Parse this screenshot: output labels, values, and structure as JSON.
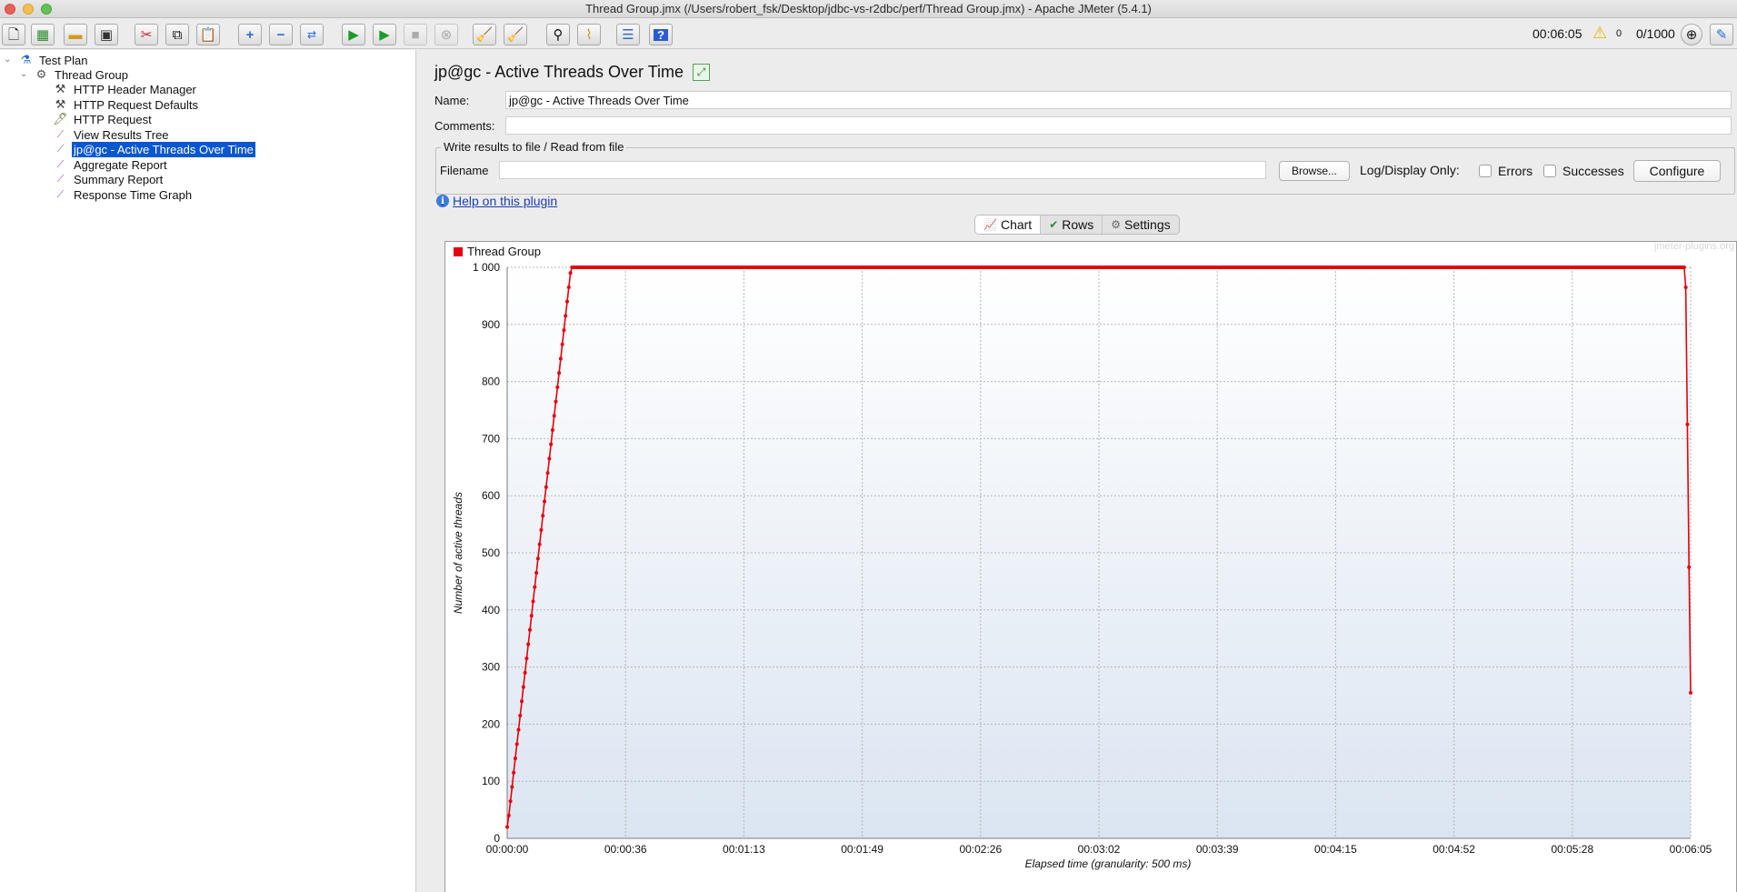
{
  "window": {
    "title": "Thread Group.jmx (/Users/robert_fsk/Desktop/jdbc-vs-r2dbc/perf/Thread Group.jmx) - Apache JMeter (5.4.1)"
  },
  "toolbar": {
    "buttons": [
      {
        "name": "new",
        "icon": "new-file-icon"
      },
      {
        "name": "templates",
        "icon": "templates-icon"
      },
      {
        "name": "open",
        "icon": "open-folder-icon"
      },
      {
        "name": "save",
        "icon": "save-icon"
      },
      {
        "name": "cut",
        "icon": "cut-icon"
      },
      {
        "name": "copy",
        "icon": "copy-icon"
      },
      {
        "name": "paste",
        "icon": "paste-icon"
      },
      {
        "name": "expand-all",
        "icon": "plus-icon"
      },
      {
        "name": "collapse-all",
        "icon": "minus-icon"
      },
      {
        "name": "toggle",
        "icon": "toggle-icon"
      },
      {
        "name": "start",
        "icon": "play-icon"
      },
      {
        "name": "start-no-pauses",
        "icon": "play-no-timers-icon"
      },
      {
        "name": "stop",
        "icon": "stop-icon"
      },
      {
        "name": "shutdown",
        "icon": "shutdown-icon"
      },
      {
        "name": "clear",
        "icon": "clear-icon"
      },
      {
        "name": "clear-all",
        "icon": "clear-all-icon"
      },
      {
        "name": "search",
        "icon": "binoculars-icon"
      },
      {
        "name": "reset-search",
        "icon": "broom-icon"
      },
      {
        "name": "function-helper",
        "icon": "list-icon"
      },
      {
        "name": "help",
        "icon": "help-icon"
      }
    ],
    "elapsed_time": "00:06:05",
    "warning_count": "0",
    "active_threads": "0/1000"
  },
  "tree": {
    "items": [
      {
        "label": "Test Plan",
        "icon": "flask-icon",
        "level": 0,
        "expanded": true
      },
      {
        "label": "Thread Group",
        "icon": "gear-icon",
        "level": 1,
        "expanded": true
      },
      {
        "label": "HTTP Header Manager",
        "icon": "tools-icon",
        "level": 2
      },
      {
        "label": "HTTP Request Defaults",
        "icon": "tools-icon",
        "level": 2
      },
      {
        "label": "HTTP Request",
        "icon": "pipette-icon",
        "level": 2
      },
      {
        "label": "View Results Tree",
        "icon": "graph-icon",
        "level": 2
      },
      {
        "label": "jp@gc - Active Threads Over Time",
        "icon": "graph-icon",
        "level": 2,
        "selected": true
      },
      {
        "label": "Aggregate Report",
        "icon": "graph-icon",
        "level": 2
      },
      {
        "label": "Summary Report",
        "icon": "graph-icon",
        "level": 2
      },
      {
        "label": "Response Time Graph",
        "icon": "graph-icon",
        "level": 2
      }
    ]
  },
  "panel": {
    "title": "jp@gc - Active Threads Over Time",
    "name_label": "Name:",
    "name_value": "jp@gc - Active Threads Over Time",
    "comments_label": "Comments:",
    "comments_value": "",
    "file_group_label": "Write results to file / Read from file",
    "filename_label": "Filename",
    "filename_value": "",
    "browse_label": "Browse...",
    "log_display_label": "Log/Display Only:",
    "errors_label": "Errors",
    "successes_label": "Successes",
    "configure_label": "Configure",
    "help_link": "Help on this plugin",
    "tabs": [
      {
        "label": "Chart",
        "icon": "chart-icon",
        "active": true
      },
      {
        "label": "Rows",
        "icon": "checkmark-icon",
        "active": false
      },
      {
        "label": "Settings",
        "icon": "settings-gear-icon",
        "active": false
      }
    ]
  },
  "chart_data": {
    "type": "line",
    "watermark": "jmeter-plugins.org",
    "ylabel": "Number of active threads",
    "xlabel": "Elapsed time (granularity: 500 ms)",
    "ylim": [
      0,
      1000
    ],
    "yticks": [
      0,
      100,
      200,
      300,
      400,
      500,
      600,
      700,
      800,
      900,
      1000
    ],
    "ytick_labels": [
      "0",
      "100",
      "200",
      "300",
      "400",
      "500",
      "600",
      "700",
      "800",
      "900",
      "1 000"
    ],
    "xlim_seconds": [
      0,
      365
    ],
    "xticks_seconds": [
      0,
      36.5,
      73,
      109.5,
      146,
      182.5,
      219,
      255.5,
      292,
      328.5,
      365
    ],
    "xtick_labels": [
      "00:00:00",
      "00:00:36",
      "00:01:13",
      "00:01:49",
      "00:02:26",
      "00:03:02",
      "00:03:39",
      "00:04:15",
      "00:04:52",
      "00:05:28",
      "00:06:05"
    ],
    "grid": true,
    "legend_position": "top-left",
    "series": [
      {
        "name": "Thread Group",
        "color": "#e8000b",
        "x": [
          0,
          0.5,
          1.0,
          1.5,
          2.0,
          2.5,
          3.0,
          3.5,
          4.0,
          4.5,
          5.0,
          5.5,
          6.0,
          6.5,
          7.0,
          7.5,
          8.0,
          8.5,
          9.0,
          9.5,
          10.0,
          10.5,
          11.0,
          11.5,
          12.0,
          12.5,
          13.0,
          13.5,
          14.0,
          14.5,
          15.0,
          15.5,
          16.0,
          16.5,
          17.0,
          17.5,
          18.0,
          18.5,
          19.0,
          19.5,
          20.0,
          363.0,
          363.5,
          364.0,
          364.5,
          365.0
        ],
        "y": [
          20,
          40,
          65,
          90,
          115,
          140,
          165,
          190,
          215,
          240,
          265,
          290,
          315,
          340,
          365,
          390,
          415,
          440,
          465,
          490,
          515,
          540,
          565,
          590,
          615,
          640,
          665,
          690,
          715,
          740,
          765,
          790,
          815,
          840,
          865,
          890,
          915,
          940,
          965,
          990,
          1000,
          1000,
          965,
          725,
          475,
          255
        ]
      }
    ]
  }
}
